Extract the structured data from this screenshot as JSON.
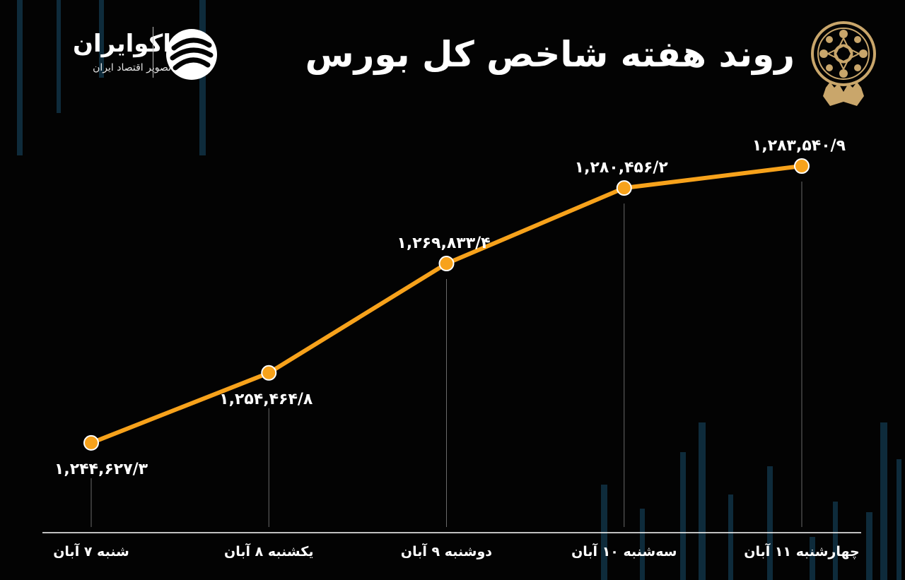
{
  "header": {
    "title": "روند هفته شاخص کل بورس",
    "brand_name": "اکوایران",
    "brand_tagline": "تصویر اقتصاد ایران",
    "seal_icon": "tehran-stock-exchange-seal-icon",
    "logo_icon": "ecoiran-logo-icon"
  },
  "colors": {
    "background": "#030303",
    "line": "#f7a21b",
    "marker_stroke": "#ffffff",
    "text": "#ffffff",
    "accent_gold": "#c9a66b",
    "bg_bars": "#0e2b3b"
  },
  "chart_data": {
    "type": "line",
    "title": "روند هفته شاخص کل بورس",
    "categories": [
      "شنبه ۷ آبان",
      "یکشنبه ۸ آبان",
      "دوشنبه ۹ آبان",
      "سه‌شنبه ۱۰ آبان",
      "چهارشنبه ۱۱ آبان"
    ],
    "values": [
      1244627.3,
      1254464.8,
      1269833.4,
      1280456.2,
      1283540.9
    ],
    "value_labels": [
      "۱,۲۴۴,۶۲۷/۳",
      "۱,۲۵۴,۴۶۴/۸",
      "۱,۲۶۹,۸۳۳/۴",
      "۱,۲۸۰,۴۵۶/۲",
      "۱,۲۸۳,۵۴۰/۹"
    ],
    "label_position": [
      "below",
      "below",
      "above",
      "above",
      "above"
    ],
    "xlabel": "",
    "ylabel": "",
    "ylim": [
      1232000,
      1290000
    ],
    "grid": false,
    "legend": "none"
  }
}
